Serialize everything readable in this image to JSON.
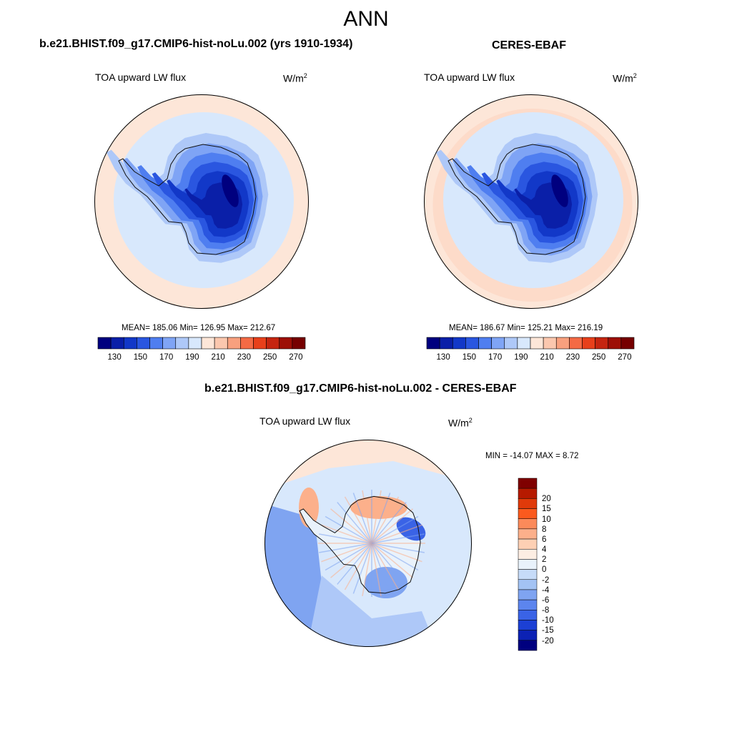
{
  "title": "ANN",
  "panels": [
    {
      "id": "model",
      "title": "b.e21.BHIST.f09_g17.CMIP6-hist-noLu.002 (yrs 1910-1934)",
      "variable": "TOA upward LW flux",
      "units_base": "W/m",
      "units_exp": "2",
      "stats": "MEAN= 185.06  Min= 126.95  Max= 212.67"
    },
    {
      "id": "obs",
      "title": "CERES-EBAF",
      "variable": "TOA upward LW flux",
      "units_base": "W/m",
      "units_exp": "2",
      "stats": "MEAN= 186.67  Min= 125.21  Max= 216.19"
    },
    {
      "id": "diff",
      "title": "b.e21.BHIST.f09_g17.CMIP6-hist-noLu.002 - CERES-EBAF",
      "variable": "TOA upward LW flux",
      "units_base": "W/m",
      "units_exp": "2",
      "stats": "MIN = -14.07 MAX =   8.72"
    }
  ],
  "colorbar_main": {
    "colors": [
      "#00007f",
      "#0a1fa8",
      "#1238c8",
      "#2a56e0",
      "#4f7ef0",
      "#7fa4f5",
      "#aec8f8",
      "#d8e8fc",
      "#fde6d8",
      "#fbc7ae",
      "#f8a07e",
      "#f46a45",
      "#e8401b",
      "#c52510",
      "#9d0f06",
      "#760000"
    ],
    "tick_labels": [
      "130",
      "150",
      "170",
      "190",
      "210",
      "230",
      "250",
      "270"
    ]
  },
  "colorbar_diff": {
    "colors": [
      "#7f0000",
      "#b61a00",
      "#e03a0a",
      "#fa5a1e",
      "#fb8a5a",
      "#fcb08b",
      "#fdd0b4",
      "#fdeee3",
      "#e9f2fb",
      "#c6dbf8",
      "#a3c3f4",
      "#7fa4f1",
      "#5c85ee",
      "#3a63e6",
      "#1c40d4",
      "#0c22b4",
      "#00007f"
    ],
    "tick_labels": [
      "20",
      "15",
      "10",
      "8",
      "6",
      "4",
      "2",
      "0",
      "-2",
      "-4",
      "-6",
      "-8",
      "-10",
      "-15",
      "-20"
    ]
  },
  "map_colors": {
    "outer_ring": "#fde6d8",
    "ring_mid": "#d8e8fc",
    "ring_inner": "#aec8f8",
    "l1": "#7fa4f5",
    "l2": "#4f7ef0",
    "l3": "#2a56e0",
    "l4": "#1238c8",
    "l5": "#0a1fa8",
    "core": "#00007f",
    "diff_bg": "#d8e8fc",
    "diff_pos": "#fcb08b",
    "diff_neg": "#7fa4f1",
    "diff_strong_neg": "#3a63e6"
  }
}
